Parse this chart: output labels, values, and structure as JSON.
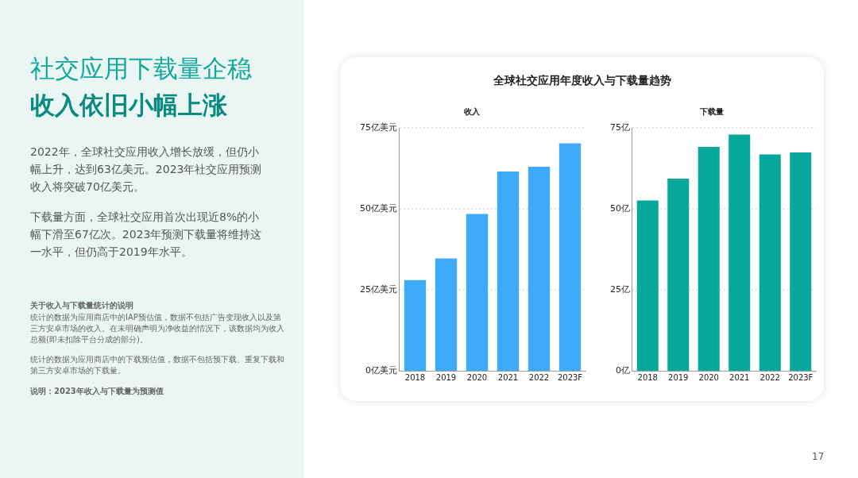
{
  "chart_data": [
    {
      "type": "other",
      "title": "社交应用下载量企稳",
      "subtitle": "收入依旧小幅上涨",
      "annotations": [
        "2022年，全球社交应用收入增长放缓，但仍小幅上升，达到63亿美元。2023年社交应用预测收入将突破70亿美元。",
        "下载量方面，全球社交应用首次出现近8%的小幅下滑至67亿次。2023年预测下载量将维持这一水平，但仍高于2019年水平。",
        "关于收入与下载量统计的说明",
        "统计的数据为应用商店中的IAP预估值，数据不包括广告变现收入以及第三方安卓市场的收入。在未明确声明为净收益的情况下，该数据均为收入总额(即未扣除平台分成的部分)。",
        "统计的数据为应用商店中的下载预估值，数据不包括预下载、重复下载和第三方安卓市场的下载量。",
        "说明：2023年收入与下载量为预测值",
        "17"
      ]
    },
    {
      "type": "other",
      "title": "全球社交应用年度收入与下载量趋势"
    },
    {
      "type": "bar",
      "title": "收入",
      "categories": [
        "2018",
        "2019",
        "2020",
        "2021",
        "2022",
        "2023F"
      ],
      "values": [
        28,
        34.7,
        48.4,
        61.5,
        63,
        70.2
      ],
      "color": "#3eaafa",
      "ylim": [
        0,
        75
      ],
      "yticks": [
        {
          "value": 0,
          "label": "0亿美元"
        },
        {
          "value": 25,
          "label": "25亿美元"
        },
        {
          "value": 50,
          "label": "50亿美元"
        },
        {
          "value": 75,
          "label": "75亿美元"
        }
      ],
      "grid": "y",
      "legend": false
    },
    {
      "type": "bar",
      "title": "下载量",
      "categories": [
        "2018",
        "2019",
        "2020",
        "2021",
        "2022",
        "2023F"
      ],
      "values": [
        52.6,
        59.3,
        69.1,
        72.9,
        66.8,
        67.4
      ],
      "color": "#05a89b",
      "ylim": [
        0,
        75
      ],
      "yticks": [
        {
          "value": 0,
          "label": "0亿"
        },
        {
          "value": 25,
          "label": "25亿"
        },
        {
          "value": 50,
          "label": "50亿"
        },
        {
          "value": 75,
          "label": "75亿"
        }
      ],
      "grid": "y",
      "legend": false
    }
  ]
}
